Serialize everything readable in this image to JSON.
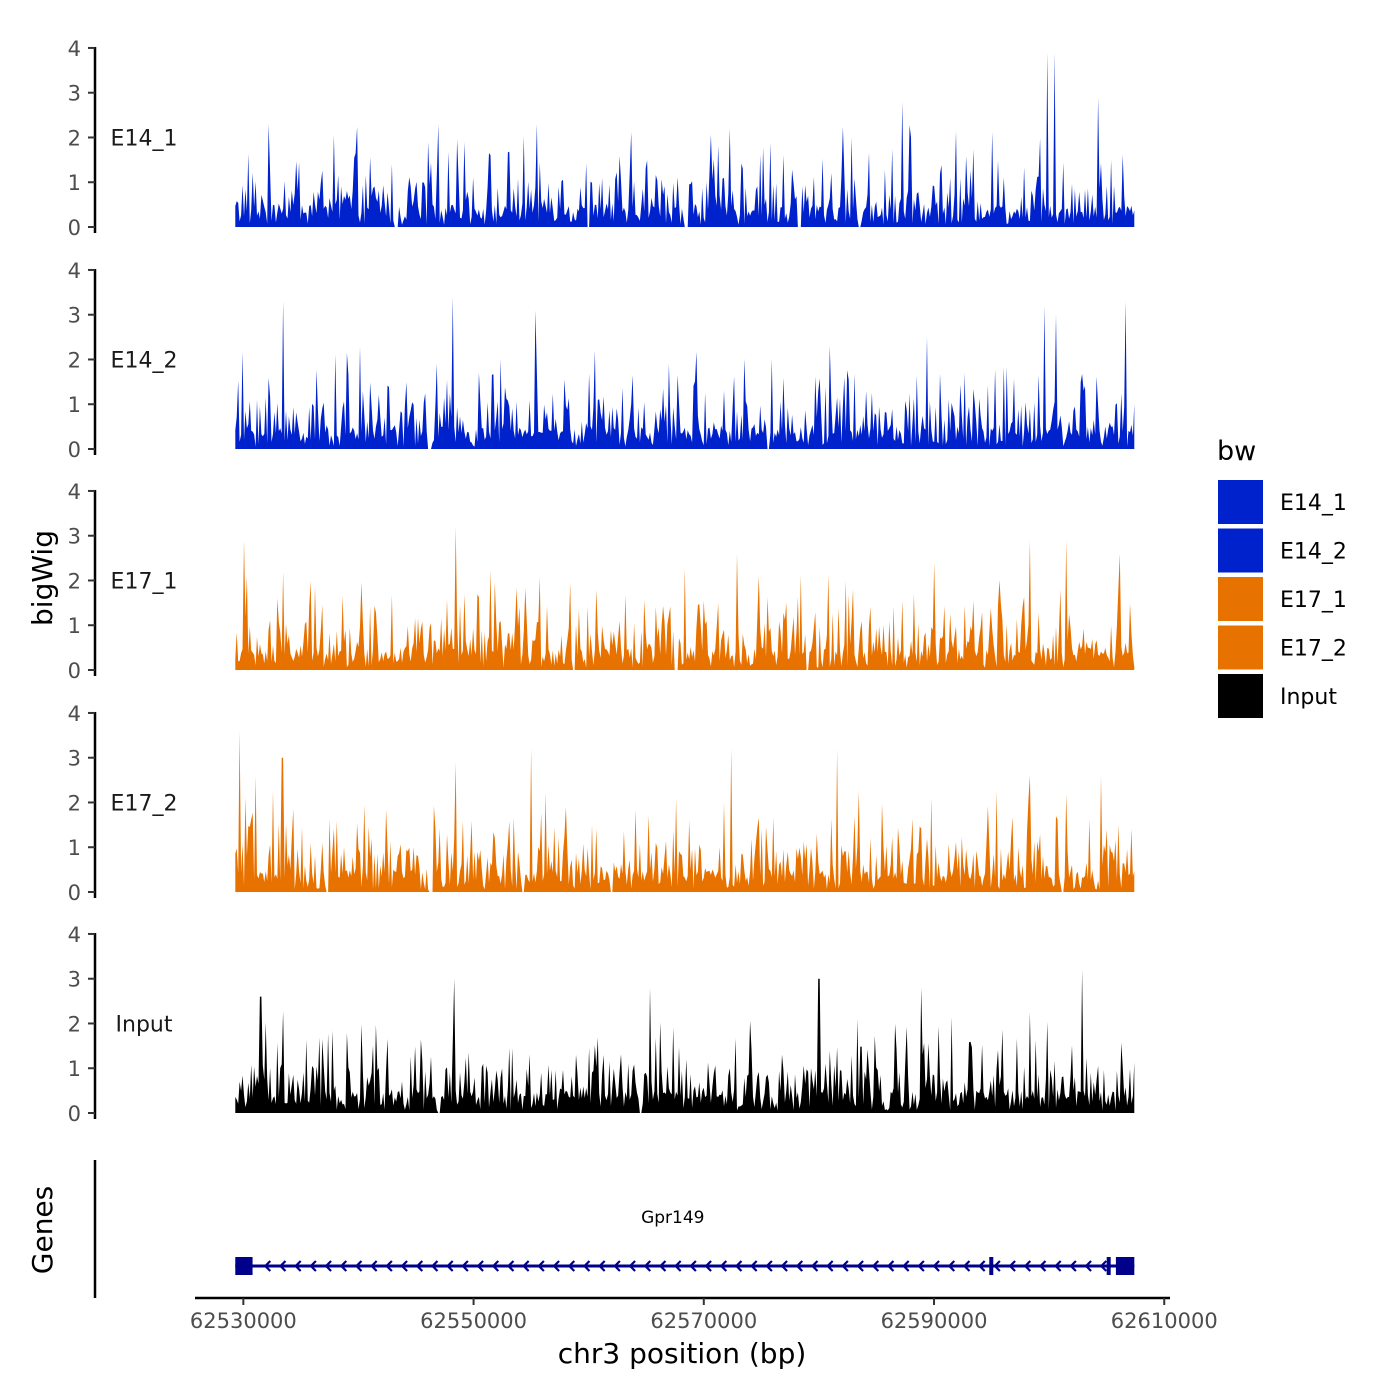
{
  "chart_data": {
    "type": "area",
    "ylabel": "bigWig",
    "xlabel": "chr3 position (bp)",
    "xlim": [
      62525800,
      62610500
    ],
    "xticks": [
      62530000,
      62550000,
      62570000,
      62590000,
      62610000
    ],
    "xtick_labels": [
      "62530000",
      "62550000",
      "62570000",
      "62590000",
      "62610000"
    ],
    "ylim": [
      0,
      4.2
    ],
    "yticks": [
      0,
      1,
      2,
      3,
      4
    ],
    "ytick_labels": [
      "0",
      "1",
      "2",
      "3",
      "4"
    ],
    "data_range": [
      62529300,
      62607400
    ],
    "tracks": [
      {
        "name": "E14_1",
        "color": "#0022CC",
        "max_value": 3.9,
        "peaks": [
          [
            62546000,
            1.9
          ],
          [
            62549200,
            1.9
          ],
          [
            62573400,
            1.3
          ],
          [
            62582800,
            2.0
          ],
          [
            62587300,
            2.8
          ],
          [
            62599800,
            3.9
          ],
          [
            62600500,
            3.9
          ],
          [
            62604200,
            2.9
          ]
        ],
        "gaps": [
          62543300,
          62560000,
          62568500,
          62578300,
          62583500
        ]
      },
      {
        "name": "E14_2",
        "color": "#0022CC",
        "max_value": 3.4,
        "peaks": [
          [
            62533500,
            3.3
          ],
          [
            62548200,
            3.4
          ],
          [
            62555400,
            3.1
          ],
          [
            62560500,
            2.2
          ],
          [
            62580900,
            2.3
          ],
          [
            62589400,
            2.5
          ],
          [
            62599600,
            3.2
          ],
          [
            62600600,
            3.0
          ],
          [
            62606700,
            3.3
          ]
        ],
        "gaps": [
          62546200,
          62575600
        ]
      },
      {
        "name": "E17_1",
        "color": "#E87200",
        "max_value": 3.2,
        "peaks": [
          [
            62530000,
            2.9
          ],
          [
            62548500,
            3.2
          ],
          [
            62572900,
            2.6
          ],
          [
            62582300,
            2.0
          ],
          [
            62590000,
            2.4
          ],
          [
            62598300,
            2.9
          ],
          [
            62601500,
            2.9
          ],
          [
            62606100,
            2.6
          ]
        ],
        "gaps": [
          62558700,
          62567600,
          62579000
        ]
      },
      {
        "name": "E17_2",
        "color": "#E87200",
        "max_value": 3.6,
        "peaks": [
          [
            62529700,
            3.6
          ],
          [
            62531100,
            2.6
          ],
          [
            62533400,
            3.0
          ],
          [
            62548400,
            2.9
          ],
          [
            62555000,
            3.2
          ],
          [
            62572400,
            3.2
          ],
          [
            62581600,
            3.2
          ],
          [
            62598300,
            2.6
          ],
          [
            62604500,
            2.6
          ]
        ],
        "gaps": [
          62537300,
          62546300,
          62554300,
          62562000,
          62601200
        ]
      },
      {
        "name": "Input",
        "color": "#000000",
        "max_value": 3.2,
        "peaks": [
          [
            62531500,
            2.6
          ],
          [
            62548300,
            3.0
          ],
          [
            62565300,
            2.8
          ],
          [
            62580000,
            3.0
          ],
          [
            62588900,
            2.8
          ],
          [
            62602900,
            3.2
          ]
        ],
        "gaps": [
          62547000,
          62564500
        ]
      }
    ],
    "legend": {
      "title": "bw",
      "entries": [
        {
          "label": "E14_1",
          "color": "#0022CC"
        },
        {
          "label": "E14_2",
          "color": "#0022CC"
        },
        {
          "label": "E17_1",
          "color": "#E87200"
        },
        {
          "label": "E17_2",
          "color": "#E87200"
        },
        {
          "label": "Input",
          "color": "#000000"
        }
      ]
    },
    "genes_track": {
      "ylabel": "Genes",
      "gene_name": "Gpr149",
      "color": "#00008B",
      "strand": "-",
      "start": 62529300,
      "end": 62607400,
      "exons": [
        [
          62529300,
          62530800
        ],
        [
          62594800,
          62595100
        ],
        [
          62605000,
          62605200
        ],
        [
          62605800,
          62607400
        ]
      ]
    }
  }
}
